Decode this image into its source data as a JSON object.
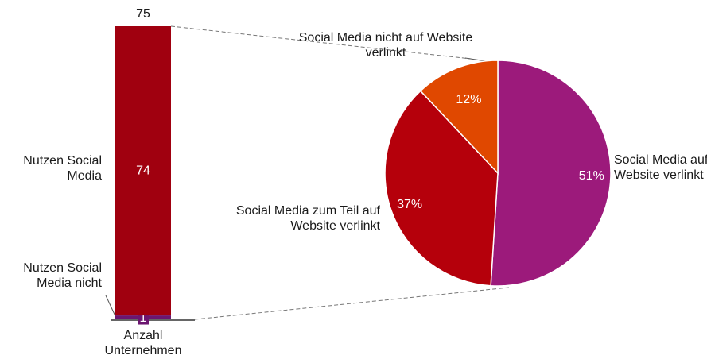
{
  "chart_data": [
    {
      "type": "bar",
      "categories": [
        "Anzahl Unternehmen"
      ],
      "series": [
        {
          "name": "Nutzen Social Media nicht",
          "color": "#6b1670",
          "values": [
            1
          ]
        },
        {
          "name": "Nutzen Social Media",
          "color": "#a0000f",
          "values": [
            74
          ]
        }
      ],
      "total": 75,
      "ylim": [
        0,
        75
      ]
    },
    {
      "type": "pie",
      "categories": [
        "Social Media auf Website verlinkt",
        "Social Media zum Teil auf Website verlinkt",
        "Social Media nicht auf Website verlinkt"
      ],
      "values": [
        51,
        37,
        12
      ],
      "value_labels": [
        "51%",
        "37%",
        "12%"
      ],
      "colors": [
        "#9c1a7b",
        "#b5000b",
        "#e04800"
      ]
    }
  ]
}
